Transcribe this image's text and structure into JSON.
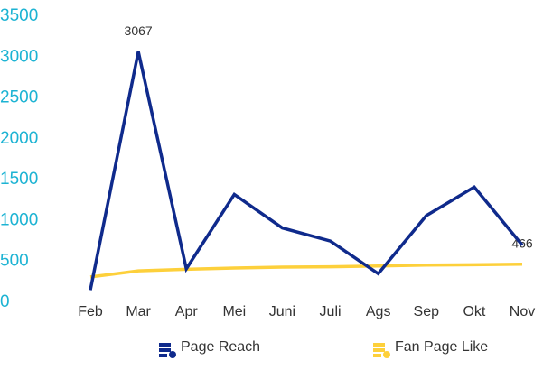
{
  "chart_data": {
    "type": "line",
    "categories": [
      "Feb",
      "Mar",
      "Apr",
      "Mei",
      "Juni",
      "Juli",
      "Ags",
      "Sep",
      "Okt",
      "Nov"
    ],
    "series": [
      {
        "name": "Page Reach",
        "color": "#0f2a8c",
        "values": [
          150,
          3067,
          410,
          1320,
          910,
          750,
          350,
          1060,
          1410,
          700
        ],
        "value_labels": [
          null,
          "3067",
          null,
          null,
          null,
          null,
          null,
          null,
          null,
          null
        ]
      },
      {
        "name": "Fan Page Like",
        "color": "#fdd03b",
        "values": [
          310,
          385,
          405,
          420,
          430,
          435,
          445,
          455,
          460,
          466
        ],
        "value_labels": [
          null,
          null,
          null,
          null,
          null,
          null,
          null,
          null,
          null,
          "466"
        ]
      }
    ],
    "ylim": [
      0,
      3500
    ],
    "yticks": [
      0,
      500,
      1000,
      1500,
      2000,
      2500,
      3000,
      3500
    ],
    "grid": false,
    "legend": "bottom"
  }
}
